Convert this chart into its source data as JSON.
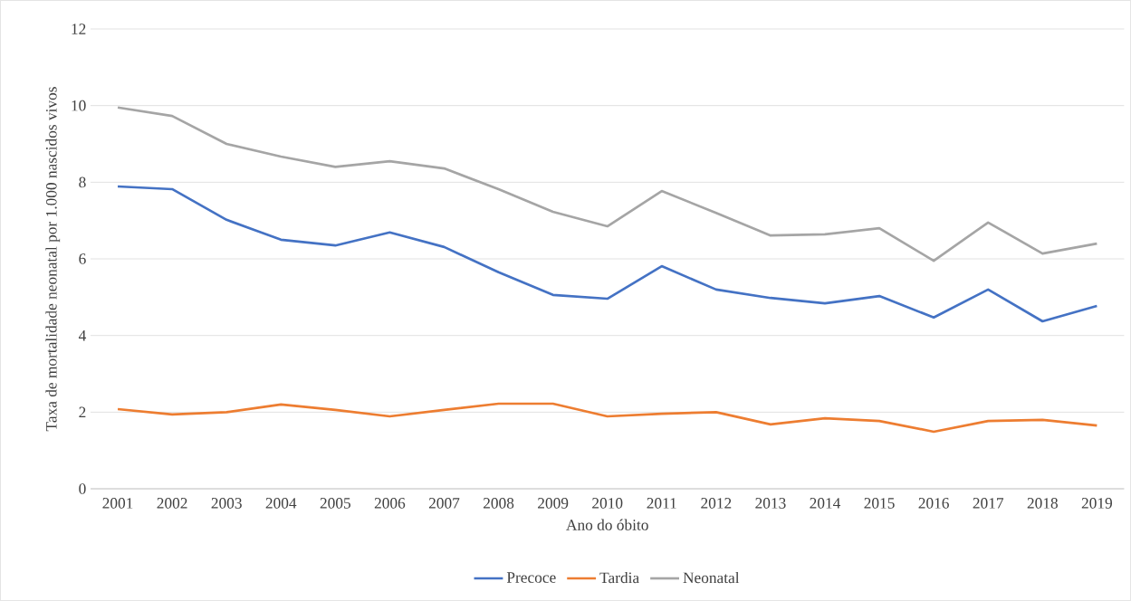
{
  "chart_data": {
    "type": "line",
    "xlabel": "Ano do óbito",
    "ylabel": "Taxa de mortalidade neonatal por 1.000 nascidos vivos",
    "categories": [
      "2001",
      "2002",
      "2003",
      "2004",
      "2005",
      "2006",
      "2007",
      "2008",
      "2009",
      "2010",
      "2011",
      "2012",
      "2013",
      "2014",
      "2015",
      "2016",
      "2017",
      "2018",
      "2019"
    ],
    "series": [
      {
        "name": "Precoce",
        "color": "#4472c4",
        "values": [
          7.89,
          7.82,
          7.02,
          6.5,
          6.35,
          6.69,
          6.31,
          5.65,
          5.06,
          4.96,
          5.81,
          5.2,
          4.98,
          4.84,
          5.03,
          4.47,
          5.2,
          4.37,
          4.77
        ]
      },
      {
        "name": "Tardia",
        "color": "#ed7d31",
        "values": [
          2.08,
          1.94,
          2.0,
          2.2,
          2.06,
          1.89,
          2.06,
          2.22,
          2.22,
          1.89,
          1.96,
          2.0,
          1.68,
          1.84,
          1.77,
          1.49,
          1.77,
          1.8,
          1.65
        ]
      },
      {
        "name": "Neonatal",
        "color": "#a5a5a5",
        "values": [
          9.95,
          9.73,
          9.0,
          8.67,
          8.4,
          8.55,
          8.36,
          7.82,
          7.23,
          6.85,
          7.77,
          7.2,
          6.61,
          6.64,
          6.8,
          5.95,
          6.95,
          6.14,
          6.4
        ]
      }
    ],
    "ylim": [
      0,
      12
    ],
    "yticks": [
      0,
      2,
      4,
      6,
      8,
      10,
      12
    ],
    "grid": "y",
    "legend": "bottom",
    "marker": "none",
    "line_style": "solid"
  }
}
